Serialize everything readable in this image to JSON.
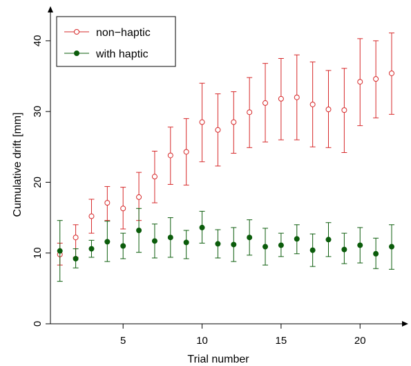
{
  "chart_data": {
    "type": "scatter",
    "title": "",
    "xlabel": "Trial number",
    "ylabel": "Cumulative drift [mm]",
    "xlim": [
      0.4,
      22.7
    ],
    "ylim": [
      0,
      44
    ],
    "x_ticks": [
      5,
      10,
      15,
      20
    ],
    "y_ticks": [
      0,
      10,
      20,
      30,
      40
    ],
    "grid": false,
    "legend_position": "top-left",
    "error_bars": true,
    "series": [
      {
        "name": "non−haptic",
        "marker": "open-circle",
        "color": "#d62728",
        "x": [
          1,
          2,
          3,
          4,
          5,
          6,
          7,
          8,
          9,
          10,
          11,
          12,
          13,
          14,
          15,
          16,
          17,
          18,
          19,
          20,
          21,
          22
        ],
        "y": [
          9.8,
          12.2,
          15.2,
          17.1,
          16.3,
          17.9,
          20.8,
          23.8,
          24.3,
          28.5,
          27.4,
          28.5,
          29.9,
          31.2,
          31.8,
          32.0,
          31.0,
          30.3,
          30.2,
          34.2,
          34.6,
          35.4
        ],
        "err_low": [
          8.3,
          9.4,
          12.8,
          14.6,
          13.4,
          14.6,
          17.1,
          19.7,
          19.6,
          22.9,
          22.3,
          24.1,
          24.9,
          25.7,
          26.0,
          26.0,
          25.0,
          24.9,
          24.2,
          28.0,
          29.1,
          29.6
        ],
        "err_high": [
          11.4,
          14.0,
          17.6,
          19.4,
          19.3,
          21.4,
          24.4,
          27.8,
          29.0,
          34.0,
          32.5,
          32.8,
          34.8,
          36.8,
          37.5,
          38.0,
          37.0,
          35.8,
          36.1,
          40.3,
          40.0,
          41.1
        ]
      },
      {
        "name": "with haptic",
        "marker": "filled-circle",
        "color": "#0b5c0b",
        "x": [
          1,
          2,
          3,
          4,
          5,
          6,
          7,
          8,
          9,
          10,
          11,
          12,
          13,
          14,
          15,
          16,
          17,
          18,
          19,
          20,
          21,
          22
        ],
        "y": [
          10.3,
          9.2,
          10.6,
          11.6,
          11.0,
          13.2,
          11.7,
          12.2,
          11.5,
          13.6,
          11.3,
          11.2,
          12.2,
          10.9,
          11.1,
          12.0,
          10.4,
          11.9,
          10.5,
          11.1,
          9.9,
          10.9
        ],
        "err_low": [
          6.0,
          7.9,
          9.4,
          8.8,
          9.2,
          10.1,
          9.3,
          9.4,
          9.2,
          11.4,
          9.3,
          8.8,
          9.7,
          8.3,
          9.5,
          9.9,
          8.1,
          9.5,
          8.5,
          8.6,
          7.8,
          7.7
        ],
        "err_high": [
          14.6,
          10.6,
          11.8,
          14.5,
          12.8,
          16.3,
          14.1,
          15.0,
          13.2,
          15.9,
          13.3,
          13.6,
          14.7,
          13.5,
          12.8,
          14.0,
          12.7,
          14.3,
          12.8,
          13.6,
          12.1,
          14.0
        ]
      }
    ]
  }
}
